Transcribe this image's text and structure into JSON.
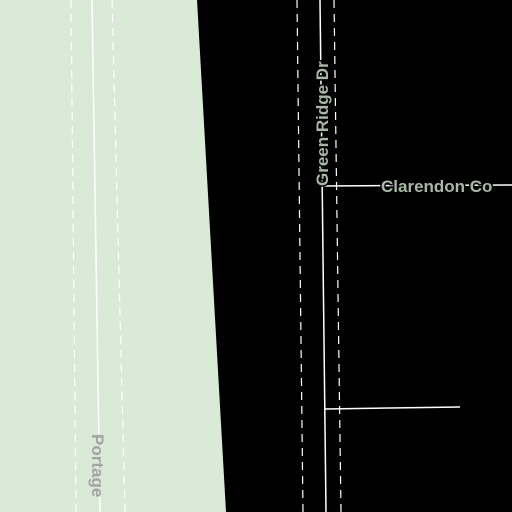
{
  "map": {
    "background_color": "#000000",
    "park_color": "#d9ebd6",
    "road_color": "#ffffff",
    "label_color": "#a9b8a6",
    "park_label_color": "#a3a3a3",
    "roads": [
      {
        "id": "portage",
        "label": "Portage",
        "type": "path"
      },
      {
        "id": "green-ridge-dr",
        "label": "Green Ridge Dr",
        "type": "street"
      },
      {
        "id": "clarendon",
        "label": "Clarendon Co",
        "type": "street"
      },
      {
        "id": "unnamed-spur",
        "label": "",
        "type": "street"
      }
    ]
  }
}
